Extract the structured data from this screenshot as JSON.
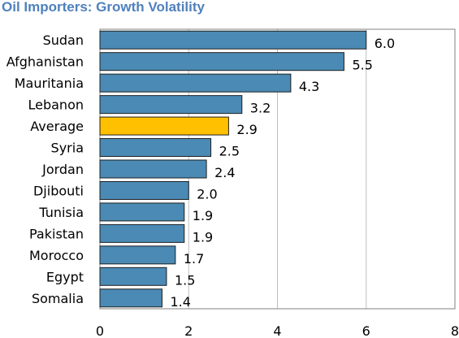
{
  "chart_data": {
    "type": "bar",
    "orientation": "horizontal",
    "title": "Oil Importers: Growth Volatility",
    "categories": [
      "Sudan",
      "Afghanistan",
      "Mauritania",
      "Lebanon",
      "Average",
      "Syria",
      "Jordan",
      "Djibouti",
      "Tunisia",
      "Pakistan",
      "Morocco",
      "Egypt",
      "Somalia"
    ],
    "values": [
      6.0,
      5.5,
      4.3,
      3.2,
      2.9,
      2.5,
      2.4,
      2.0,
      1.9,
      1.9,
      1.7,
      1.5,
      1.4
    ],
    "value_labels": [
      "6.0",
      "5.5",
      "4.3",
      "3.2",
      "2.9",
      "2.5",
      "2.4",
      "2.0",
      "1.9",
      "1.9",
      "1.7",
      "1.5",
      "1.4"
    ],
    "xlim": [
      0,
      8
    ],
    "xticks": [
      "0",
      "2",
      "4",
      "6",
      "8"
    ],
    "grid": true,
    "legend": "none",
    "highlight_category": "Average",
    "colors": {
      "bar": "#4a8ab4",
      "highlight": "#ffc000",
      "title": "#4f81bd",
      "grid": "#bfbfbf"
    }
  }
}
